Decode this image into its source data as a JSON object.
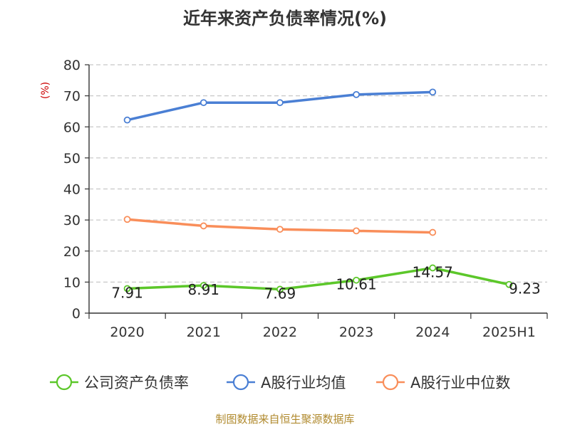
{
  "chart_data": {
    "type": "line",
    "title": "近年来资产负债率情况(%)",
    "y_unit_label": "(%)",
    "ylim": [
      0,
      80
    ],
    "y_ticks": [
      0,
      10,
      20,
      30,
      40,
      50,
      60,
      70,
      80
    ],
    "grid": true,
    "categories": [
      "2020",
      "2021",
      "2022",
      "2023",
      "2024",
      "2025H1"
    ],
    "series": [
      {
        "name": "公司资产负债率",
        "color": "#5cc72a",
        "values": [
          7.91,
          8.91,
          7.69,
          10.61,
          14.57,
          9.23
        ],
        "labels": [
          "7.91",
          "8.91",
          "7.69",
          "10.61",
          "14.57",
          "9.23"
        ]
      },
      {
        "name": "A股行业均值",
        "color": "#4a7fd4",
        "values": [
          62.2,
          67.8,
          67.8,
          70.4,
          71.2,
          null
        ]
      },
      {
        "name": "A股行业中位数",
        "color": "#f98e5a",
        "values": [
          30.2,
          28.1,
          27.0,
          26.5,
          26.0,
          null
        ]
      }
    ],
    "legend_position": "bottom"
  },
  "source_text": "制图数据来自恒生聚源数据库"
}
